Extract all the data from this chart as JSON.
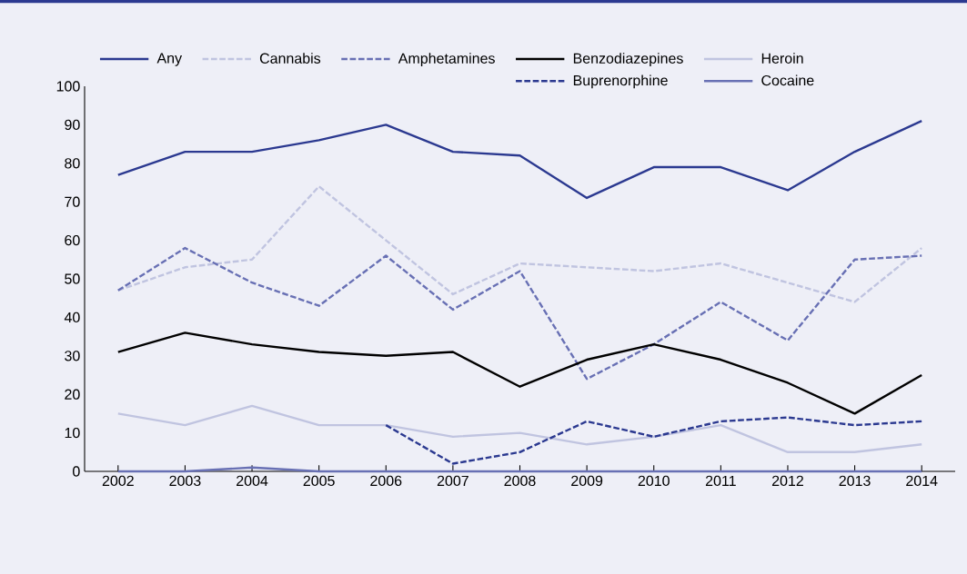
{
  "chart_data": {
    "type": "line",
    "categories": [
      "2002",
      "2003",
      "2004",
      "2005",
      "2006",
      "2007",
      "2008",
      "2009",
      "2010",
      "2011",
      "2012",
      "2013",
      "2014"
    ],
    "series": [
      {
        "name": "Any",
        "color": "#2b3990",
        "line_style": "solid",
        "values": [
          77,
          83,
          83,
          86,
          90,
          83,
          82,
          71,
          79,
          79,
          73,
          83,
          91
        ]
      },
      {
        "name": "Cannabis",
        "color": "#c0c4e0",
        "line_style": "dashed",
        "values": [
          47,
          53,
          55,
          74,
          60,
          46,
          54,
          53,
          52,
          54,
          49,
          44,
          58
        ]
      },
      {
        "name": "Amphetamines",
        "color": "#6870b4",
        "line_style": "dashed",
        "values": [
          47,
          58,
          49,
          43,
          56,
          42,
          52,
          24,
          33,
          44,
          34,
          55,
          56
        ]
      },
      {
        "name": "Benzodiazepines",
        "color": "#000000",
        "line_style": "solid",
        "values": [
          31,
          36,
          33,
          31,
          30,
          31,
          22,
          29,
          33,
          29,
          23,
          15,
          25
        ]
      },
      {
        "name": "Heroin",
        "color": "#c0c4e0",
        "line_style": "solid",
        "values": [
          15,
          12,
          17,
          12,
          12,
          9,
          10,
          7,
          9,
          12,
          5,
          5,
          7
        ]
      },
      {
        "name": "Buprenorphine",
        "color": "#2b3990",
        "line_style": "dashed",
        "values": [
          null,
          null,
          null,
          null,
          12,
          2,
          5,
          13,
          9,
          13,
          14,
          12,
          13
        ]
      },
      {
        "name": "Cocaine",
        "color": "#6870b4",
        "line_style": "solid",
        "values": [
          0,
          0,
          1,
          0,
          0,
          0,
          0,
          0,
          0,
          0,
          0,
          0,
          0
        ]
      }
    ],
    "ylim": [
      0,
      100
    ],
    "yticks": [
      0,
      10,
      20,
      30,
      40,
      50,
      60,
      70,
      80,
      90,
      100
    ],
    "legend": "top"
  }
}
